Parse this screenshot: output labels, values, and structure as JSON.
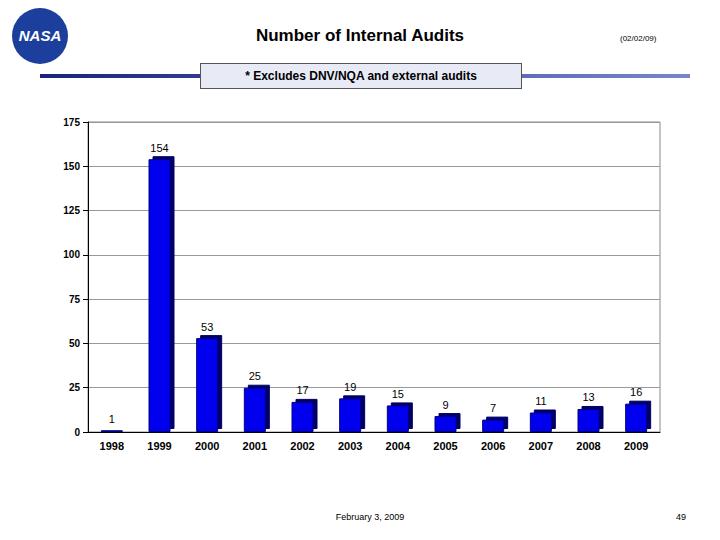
{
  "chart_data": {
    "type": "bar",
    "title": "Number of Internal Audits",
    "subtitle": "* Excludes DNV/NQA and external audits",
    "categories": [
      "1998",
      "1999",
      "2000",
      "2001",
      "2002",
      "2003",
      "2004",
      "2005",
      "2006",
      "2007",
      "2008",
      "2009"
    ],
    "values": [
      1,
      154,
      53,
      25,
      17,
      19,
      15,
      9,
      7,
      11,
      13,
      16
    ],
    "color": "#0000ee",
    "ylim": [
      0,
      175
    ],
    "yticks": [
      0,
      25,
      50,
      75,
      100,
      125,
      150,
      175
    ],
    "grid": true,
    "data_labels": true
  },
  "page": {
    "logo": "NASA",
    "date": "(02/02/09)",
    "footer": "February 3, 2009",
    "page_number": "49"
  }
}
